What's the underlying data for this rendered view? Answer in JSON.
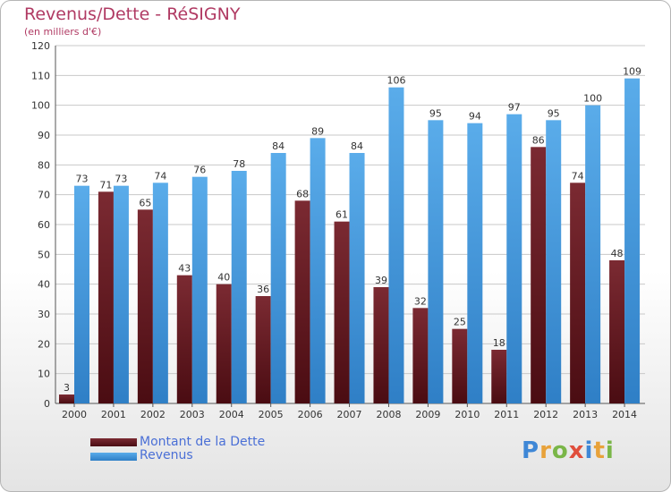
{
  "header": {
    "title": "Revenus/Dette - RéSIGNY",
    "subtitle": "(en milliers d'€)"
  },
  "logo": {
    "text": "Proxiti",
    "letters": [
      {
        "ch": "P",
        "color": "#3e87d6"
      },
      {
        "ch": "r",
        "color": "#e8a23a"
      },
      {
        "ch": "o",
        "color": "#7ab648"
      },
      {
        "ch": "x",
        "color": "#e04e3c"
      },
      {
        "ch": "i",
        "color": "#3e87d6"
      },
      {
        "ch": "t",
        "color": "#e8a23a"
      },
      {
        "ch": "i",
        "color": "#7ab648"
      }
    ]
  },
  "colors": {
    "dette": "#7b2a32",
    "dette_dark": "#4a0c12",
    "revenus": "#5aacea",
    "revenus_dark": "#2f7fc6",
    "grid": "#c8c8c8",
    "axis": "#555555"
  },
  "chart_data": {
    "type": "bar",
    "title": "Revenus/Dette - RéSIGNY",
    "subtitle": "(en milliers d'€)",
    "categories": [
      "2000",
      "2001",
      "2002",
      "2003",
      "2004",
      "2005",
      "2006",
      "2007",
      "2008",
      "2009",
      "2010",
      "2011",
      "2012",
      "2013",
      "2014"
    ],
    "series": [
      {
        "name": "Montant de la Dette",
        "values": [
          3,
          71,
          65,
          43,
          40,
          36,
          68,
          61,
          39,
          32,
          25,
          18,
          86,
          74,
          48
        ]
      },
      {
        "name": "Revenus",
        "values": [
          73,
          73,
          74,
          76,
          78,
          84,
          89,
          84,
          106,
          95,
          94,
          97,
          95,
          100,
          109
        ]
      }
    ],
    "ylim": [
      0,
      120
    ],
    "yticks": [
      0,
      10,
      20,
      30,
      40,
      50,
      60,
      70,
      80,
      90,
      100,
      110,
      120
    ],
    "grid": true,
    "legend_position": "bottom-left"
  }
}
